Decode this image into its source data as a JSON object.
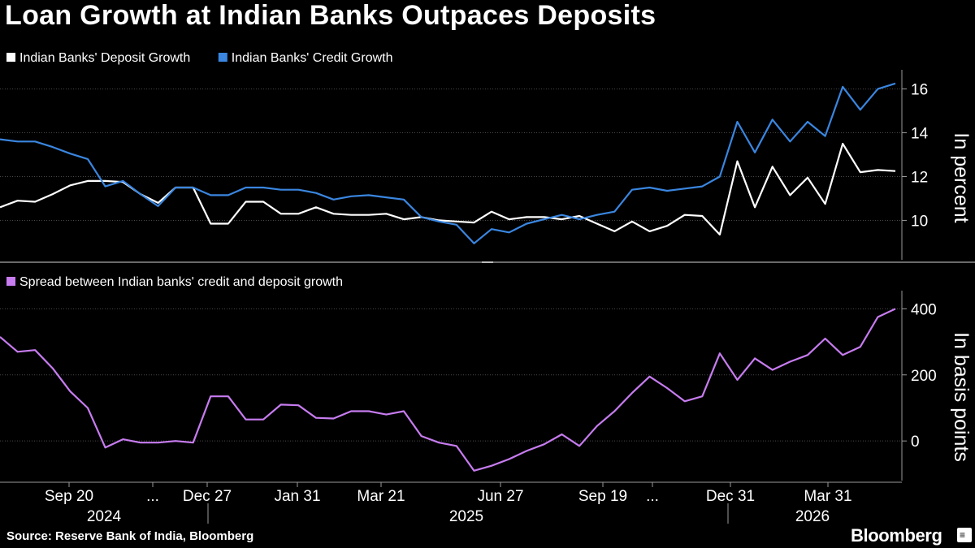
{
  "title": "Loan Growth at Indian Banks Outpaces Deposits",
  "source": "Source: Reserve Bank of India, Bloomberg",
  "brand": "Bloomberg",
  "logo_icon": "bloomberg-terminal-icon",
  "colors": {
    "background": "#000000",
    "deposit": "#ffffff",
    "credit": "#3a86e0",
    "spread": "#c77cf0",
    "grid": "#4a4a4a",
    "axis": "#9a9a9a"
  },
  "chart_data": [
    {
      "type": "line",
      "ylabel": "In percent",
      "ylim": [
        8.2,
        16.8
      ],
      "yticks": [
        10,
        12,
        14,
        16
      ],
      "grid": true,
      "legend": "top-left",
      "series": [
        {
          "name": "Indian Banks' Deposit Growth",
          "values": [
            10.6,
            10.9,
            10.85,
            11.2,
            11.6,
            11.8,
            11.8,
            11.75,
            11.2,
            10.8,
            11.5,
            11.5,
            9.85,
            9.85,
            10.85,
            10.85,
            10.3,
            10.3,
            10.6,
            10.3,
            10.25,
            10.25,
            10.3,
            10.05,
            10.15,
            10.0,
            9.95,
            9.9,
            10.4,
            10.05,
            10.15,
            10.15,
            10.05,
            10.2,
            9.85,
            9.5,
            9.95,
            9.5,
            9.75,
            10.25,
            10.2,
            9.35,
            12.7,
            10.6,
            12.45,
            11.15,
            11.95,
            10.75,
            13.5,
            12.2,
            12.3,
            12.25
          ]
        },
        {
          "name": "Indian Banks' Credit Growth",
          "values": [
            13.7,
            13.6,
            13.6,
            13.35,
            13.05,
            12.8,
            11.55,
            11.8,
            11.2,
            10.65,
            11.5,
            11.5,
            11.15,
            11.15,
            11.5,
            11.5,
            11.4,
            11.4,
            11.25,
            10.95,
            11.1,
            11.15,
            11.05,
            10.95,
            10.15,
            9.95,
            9.8,
            8.95,
            9.6,
            9.45,
            9.85,
            10.05,
            10.25,
            10.05,
            10.25,
            10.4,
            11.4,
            11.5,
            11.35,
            11.45,
            11.55,
            12.0,
            14.5,
            13.1,
            14.6,
            13.6,
            14.5,
            13.85,
            16.1,
            15.05,
            16.0,
            16.25
          ]
        }
      ]
    },
    {
      "type": "line",
      "ylabel": "In basis points",
      "ylim": [
        -120,
        450
      ],
      "yticks": [
        0,
        200,
        400
      ],
      "grid": true,
      "legend": "top-left",
      "series": [
        {
          "name": "Spread between Indian banks' credit and deposit growth",
          "values": [
            315,
            270,
            275,
            220,
            150,
            100,
            -20,
            5,
            -5,
            -5,
            0,
            -5,
            135,
            135,
            65,
            65,
            110,
            108,
            70,
            68,
            90,
            90,
            80,
            90,
            15,
            -5,
            -15,
            -90,
            -75,
            -55,
            -30,
            -10,
            20,
            -15,
            45,
            90,
            145,
            195,
            160,
            120,
            135,
            265,
            185,
            250,
            215,
            240,
            260,
            310,
            260,
            285,
            375,
            400
          ]
        }
      ]
    }
  ],
  "x_axis": {
    "tick_labels": [
      "Sep 20",
      "...",
      "Dec 27",
      "Jan 31",
      "Mar 21",
      "Jun 27",
      "Sep 19",
      "...",
      "Dec 31",
      "Mar 31"
    ],
    "year_labels": [
      "2024",
      "2025",
      "2026"
    ]
  }
}
